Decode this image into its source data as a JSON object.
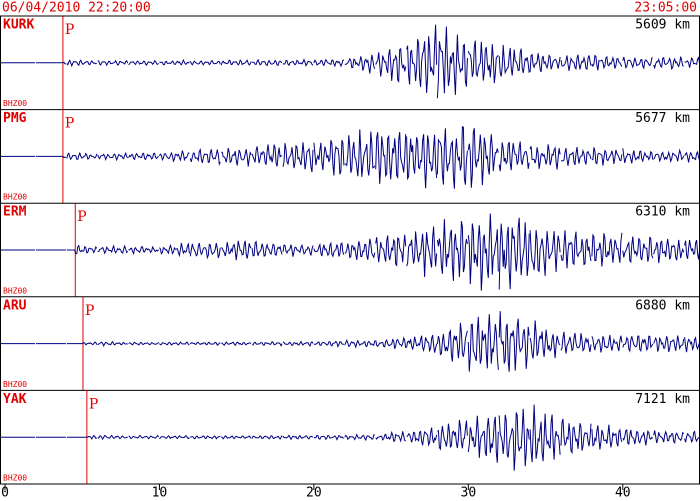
{
  "chart_data": {
    "type": "seismogram",
    "start_time": "06/04/2010 22:20:00",
    "end_time": "23:05:00",
    "xlim": [
      0,
      45
    ],
    "xticks": [
      0,
      10,
      20,
      30,
      40
    ],
    "trace_color": "#000080",
    "marker_color": "#e00000",
    "p_label": "P",
    "x": [
      0,
      2,
      4,
      6,
      8,
      10,
      12,
      14,
      16,
      18,
      20,
      22,
      24,
      26,
      28,
      30,
      32,
      34,
      36,
      38,
      40,
      42,
      44
    ],
    "stations": [
      {
        "name": "KURK",
        "channel": "BHZ00",
        "distance": "5609 km",
        "p_arrival": 3.75,
        "envelope": [
          0,
          0,
          0.08,
          0.06,
          0.06,
          0.06,
          0.06,
          0.06,
          0.07,
          0.07,
          0.08,
          0.1,
          0.3,
          0.6,
          0.95,
          0.7,
          0.5,
          0.3,
          0.2,
          0.2,
          0.15,
          0.15,
          0.15
        ]
      },
      {
        "name": "PMG",
        "channel": "BHZ00",
        "distance": "5677 km",
        "p_arrival": 3.75,
        "envelope": [
          0,
          0,
          0.1,
          0.08,
          0.08,
          0.1,
          0.15,
          0.2,
          0.25,
          0.35,
          0.45,
          0.55,
          0.75,
          0.7,
          0.8,
          0.95,
          0.5,
          0.35,
          0.3,
          0.25,
          0.2,
          0.15,
          0.15
        ]
      },
      {
        "name": "ERM",
        "channel": "BHZ00",
        "distance": "6310 km",
        "p_arrival": 4.55,
        "envelope": [
          0,
          0,
          0.15,
          0.1,
          0.1,
          0.08,
          0.2,
          0.2,
          0.3,
          0.15,
          0.15,
          0.25,
          0.35,
          0.5,
          0.7,
          0.9,
          1.0,
          0.8,
          0.5,
          0.45,
          0.4,
          0.35,
          0.3
        ]
      },
      {
        "name": "ARU",
        "channel": "BHZ00",
        "distance": "6880 km",
        "p_arrival": 5.05,
        "envelope": [
          0,
          0,
          0,
          0.05,
          0.04,
          0.04,
          0.04,
          0.04,
          0.04,
          0.05,
          0.06,
          0.08,
          0.1,
          0.15,
          0.3,
          0.7,
          0.9,
          0.6,
          0.3,
          0.25,
          0.2,
          0.25,
          0.2
        ]
      },
      {
        "name": "YAK",
        "channel": "BHZ00",
        "distance": "7121 km",
        "p_arrival": 5.3,
        "envelope": [
          0,
          0,
          0,
          0.06,
          0.04,
          0.04,
          0.04,
          0.04,
          0.04,
          0.05,
          0.05,
          0.06,
          0.08,
          0.15,
          0.3,
          0.5,
          0.7,
          0.9,
          0.5,
          0.35,
          0.25,
          0.2,
          0.15
        ]
      }
    ]
  }
}
